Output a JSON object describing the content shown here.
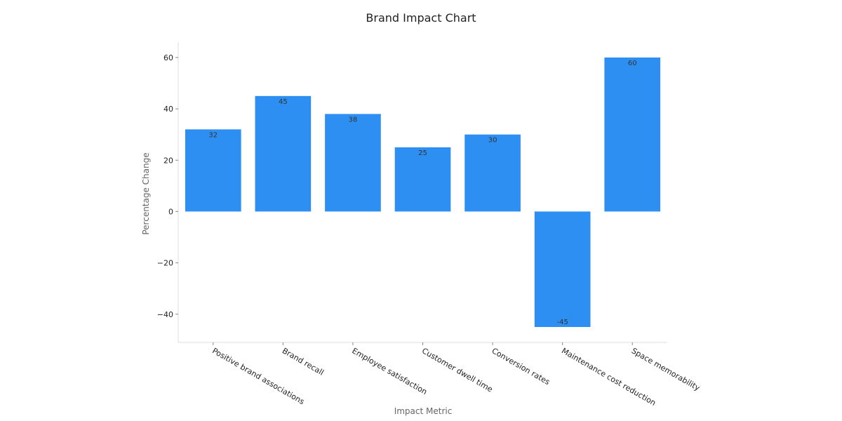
{
  "chart_data": {
    "type": "bar",
    "title": "Brand Impact Chart",
    "xlabel": "Impact Metric",
    "ylabel": "Percentage Change",
    "categories": [
      "Positive brand associations",
      "Brand recall",
      "Employee satisfaction",
      "Customer dwell time",
      "Conversion rates",
      "Maintenance cost reduction",
      "Space memorability"
    ],
    "values": [
      32,
      45,
      38,
      25,
      30,
      -45,
      60
    ],
    "data_labels": [
      "32",
      "45",
      "38",
      "25",
      "30",
      "-45",
      "60"
    ],
    "yticks": [
      -40,
      -20,
      0,
      20,
      40,
      60
    ],
    "ytick_labels": [
      "−40",
      "−20",
      "0",
      "20",
      "40",
      "60"
    ],
    "ylim": [
      -51,
      66
    ],
    "grid": false,
    "legend": "none",
    "bar_color": "#2d8ff2"
  }
}
